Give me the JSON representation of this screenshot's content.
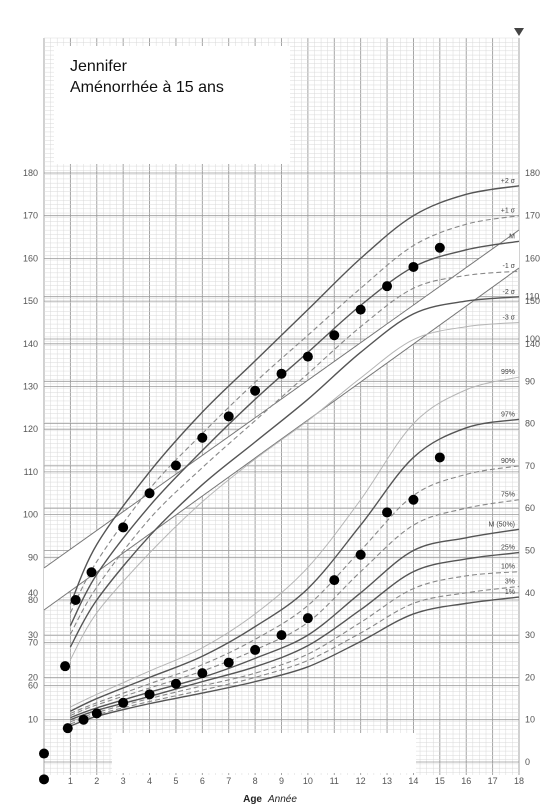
{
  "patient": {
    "name": "Jennifer",
    "diagnosis": "Aménorrhée à 15 ans"
  },
  "colors": {
    "grid_minor": "#d9d9d9",
    "grid_major": "#9a9a9a",
    "curve_main": "#555555",
    "curve_dashed": "#888888",
    "curve_light": "#b5b5b5",
    "point": "#000000"
  },
  "chart_data": [
    {
      "type": "scatter",
      "name": "height",
      "xlabel": "Age",
      "xlabel_unit": "Année",
      "xlim": [
        0,
        18
      ],
      "ylim": [
        30,
        182
      ],
      "y_ticks": [
        60,
        70,
        80,
        90,
        100,
        110,
        120,
        130,
        140,
        150,
        160,
        170,
        180
      ],
      "x_ticks": [
        0,
        1,
        2,
        3,
        4,
        5,
        6,
        7,
        8,
        9,
        10,
        11,
        12,
        13,
        14,
        15,
        16,
        17,
        18
      ],
      "reference_curves": [
        {
          "label": "+2 σ",
          "style": "solid",
          "values": [
            [
              1,
              79
            ],
            [
              2,
              93
            ],
            [
              4,
              110
            ],
            [
              6,
              124
            ],
            [
              8,
              136
            ],
            [
              10,
              148
            ],
            [
              12,
              160
            ],
            [
              14,
              170
            ],
            [
              16,
              175
            ],
            [
              18,
              177
            ]
          ]
        },
        {
          "label": "+1 σ",
          "style": "dashed",
          "values": [
            [
              1,
              77
            ],
            [
              2,
              89
            ],
            [
              4,
              106
            ],
            [
              6,
              119
            ],
            [
              8,
              131
            ],
            [
              10,
              142
            ],
            [
              12,
              153
            ],
            [
              14,
              163
            ],
            [
              16,
              168
            ],
            [
              18,
              170
            ]
          ]
        },
        {
          "label": "M",
          "style": "solid",
          "values": [
            [
              1,
              74
            ],
            [
              2,
              86
            ],
            [
              4,
              102
            ],
            [
              6,
              115
            ],
            [
              8,
              127
            ],
            [
              10,
              138
            ],
            [
              12,
              149
            ],
            [
              14,
              158
            ],
            [
              16,
              162
            ],
            [
              18,
              164
            ]
          ]
        },
        {
          "label": "-1 σ",
          "style": "dashed",
          "values": [
            [
              1,
              72
            ],
            [
              2,
              83
            ],
            [
              4,
              99
            ],
            [
              6,
              111
            ],
            [
              8,
              122
            ],
            [
              10,
              133
            ],
            [
              12,
              144
            ],
            [
              14,
              153
            ],
            [
              16,
              156
            ],
            [
              18,
              157
            ]
          ]
        },
        {
          "label": "-2 σ",
          "style": "solid",
          "values": [
            [
              1,
              69
            ],
            [
              2,
              80
            ],
            [
              4,
              95
            ],
            [
              6,
              107
            ],
            [
              8,
              117
            ],
            [
              10,
              127
            ],
            [
              12,
              138
            ],
            [
              14,
              147
            ],
            [
              16,
              150
            ],
            [
              18,
              151
            ]
          ]
        },
        {
          "label": "-3 σ",
          "style": "light",
          "values": [
            [
              1,
              66
            ],
            [
              2,
              77
            ],
            [
              4,
              91
            ],
            [
              6,
              103
            ],
            [
              8,
              113
            ],
            [
              10,
              122
            ],
            [
              12,
              132
            ],
            [
              14,
              141
            ],
            [
              16,
              144
            ],
            [
              18,
              145
            ]
          ]
        }
      ],
      "points": [
        [
          0,
          38
        ],
        [
          0.8,
          64.5
        ],
        [
          1.2,
          80
        ],
        [
          1.8,
          86.5
        ],
        [
          3,
          97
        ],
        [
          4,
          105
        ],
        [
          5,
          111.5
        ],
        [
          6,
          118
        ],
        [
          7,
          123
        ],
        [
          8,
          129
        ],
        [
          9,
          133
        ],
        [
          10,
          137
        ],
        [
          11,
          142
        ],
        [
          12,
          148
        ],
        [
          13,
          153.5
        ],
        [
          14,
          158
        ],
        [
          15,
          162.5
        ]
      ]
    },
    {
      "type": "scatter",
      "name": "weight",
      "xlabel": "Age",
      "xlabel_unit": "Année",
      "xlim": [
        0,
        18
      ],
      "ylim": [
        0,
        117
      ],
      "y_ticks": [
        0,
        10,
        20,
        30,
        40,
        50,
        60,
        70,
        80,
        90,
        100,
        110
      ],
      "x_ticks": [
        0,
        1,
        2,
        3,
        4,
        5,
        6,
        7,
        8,
        9,
        10,
        11,
        12,
        13,
        14,
        15,
        16,
        17,
        18
      ],
      "reference_curves": [
        {
          "label": "99%",
          "style": "light",
          "values": [
            [
              1,
              13
            ],
            [
              2,
              16
            ],
            [
              4,
              21.5
            ],
            [
              6,
              27
            ],
            [
              8,
              35
            ],
            [
              10,
              46
            ],
            [
              12,
              62
            ],
            [
              14,
              80
            ],
            [
              16,
              88
            ],
            [
              18,
              91
            ]
          ]
        },
        {
          "label": "97%",
          "style": "solid",
          "values": [
            [
              1,
              12
            ],
            [
              2,
              15
            ],
            [
              4,
              20
            ],
            [
              6,
              25
            ],
            [
              8,
              32
            ],
            [
              10,
              41
            ],
            [
              12,
              56
            ],
            [
              14,
              72
            ],
            [
              16,
              79
            ],
            [
              18,
              81
            ]
          ]
        },
        {
          "label": "90%",
          "style": "dashed",
          "values": [
            [
              1,
              11.5
            ],
            [
              2,
              14
            ],
            [
              4,
              18.5
            ],
            [
              6,
              23
            ],
            [
              8,
              29
            ],
            [
              10,
              37
            ],
            [
              12,
              50
            ],
            [
              14,
              63
            ],
            [
              16,
              68
            ],
            [
              18,
              70
            ]
          ]
        },
        {
          "label": "75%",
          "style": "dashed",
          "values": [
            [
              1,
              11
            ],
            [
              2,
              13.5
            ],
            [
              4,
              17.5
            ],
            [
              6,
              21.5
            ],
            [
              8,
              26.5
            ],
            [
              10,
              33
            ],
            [
              12,
              45
            ],
            [
              14,
              56
            ],
            [
              16,
              60
            ],
            [
              18,
              62
            ]
          ]
        },
        {
          "label": "M (50%)",
          "style": "solid",
          "values": [
            [
              1,
              10.5
            ],
            [
              2,
              12.8
            ],
            [
              4,
              16.5
            ],
            [
              6,
              20
            ],
            [
              8,
              24.5
            ],
            [
              10,
              30
            ],
            [
              12,
              40
            ],
            [
              14,
              50
            ],
            [
              16,
              53
            ],
            [
              18,
              55
            ]
          ]
        },
        {
          "label": "25%",
          "style": "solid",
          "values": [
            [
              1,
              10
            ],
            [
              2,
              12.2
            ],
            [
              4,
              15.5
            ],
            [
              6,
              19
            ],
            [
              8,
              22.5
            ],
            [
              10,
              27.5
            ],
            [
              12,
              36
            ],
            [
              14,
              45
            ],
            [
              16,
              48
            ],
            [
              18,
              49.5
            ]
          ]
        },
        {
          "label": "10%",
          "style": "dashed",
          "values": [
            [
              1,
              9.5
            ],
            [
              2,
              11.7
            ],
            [
              4,
              15
            ],
            [
              6,
              18
            ],
            [
              8,
              21
            ],
            [
              10,
              25.5
            ],
            [
              12,
              33
            ],
            [
              14,
              41
            ],
            [
              16,
              44
            ],
            [
              18,
              45
            ]
          ]
        },
        {
          "label": "3%",
          "style": "dashed",
          "values": [
            [
              1,
              9
            ],
            [
              2,
              11.2
            ],
            [
              4,
              14.3
            ],
            [
              6,
              17
            ],
            [
              8,
              20
            ],
            [
              10,
              24
            ],
            [
              12,
              30.5
            ],
            [
              14,
              37.5
            ],
            [
              16,
              40
            ],
            [
              18,
              41.5
            ]
          ]
        },
        {
          "label": "1%",
          "style": "solid",
          "values": [
            [
              1,
              8.5
            ],
            [
              2,
              10.8
            ],
            [
              4,
              13.8
            ],
            [
              6,
              16.3
            ],
            [
              8,
              19
            ],
            [
              10,
              22.5
            ],
            [
              12,
              28.5
            ],
            [
              14,
              35
            ],
            [
              16,
              37.5
            ],
            [
              18,
              39
            ]
          ]
        }
      ],
      "points": [
        [
          0,
          2
        ],
        [
          0.9,
          8
        ],
        [
          1.5,
          10
        ],
        [
          2,
          11.5
        ],
        [
          3,
          14
        ],
        [
          4,
          16
        ],
        [
          5,
          18.5
        ],
        [
          6,
          21
        ],
        [
          7,
          23.5
        ],
        [
          8,
          26.5
        ],
        [
          9,
          30
        ],
        [
          10,
          34
        ],
        [
          11,
          43
        ],
        [
          12,
          49
        ],
        [
          13,
          59
        ],
        [
          14,
          62
        ],
        [
          15,
          72
        ]
      ]
    }
  ]
}
